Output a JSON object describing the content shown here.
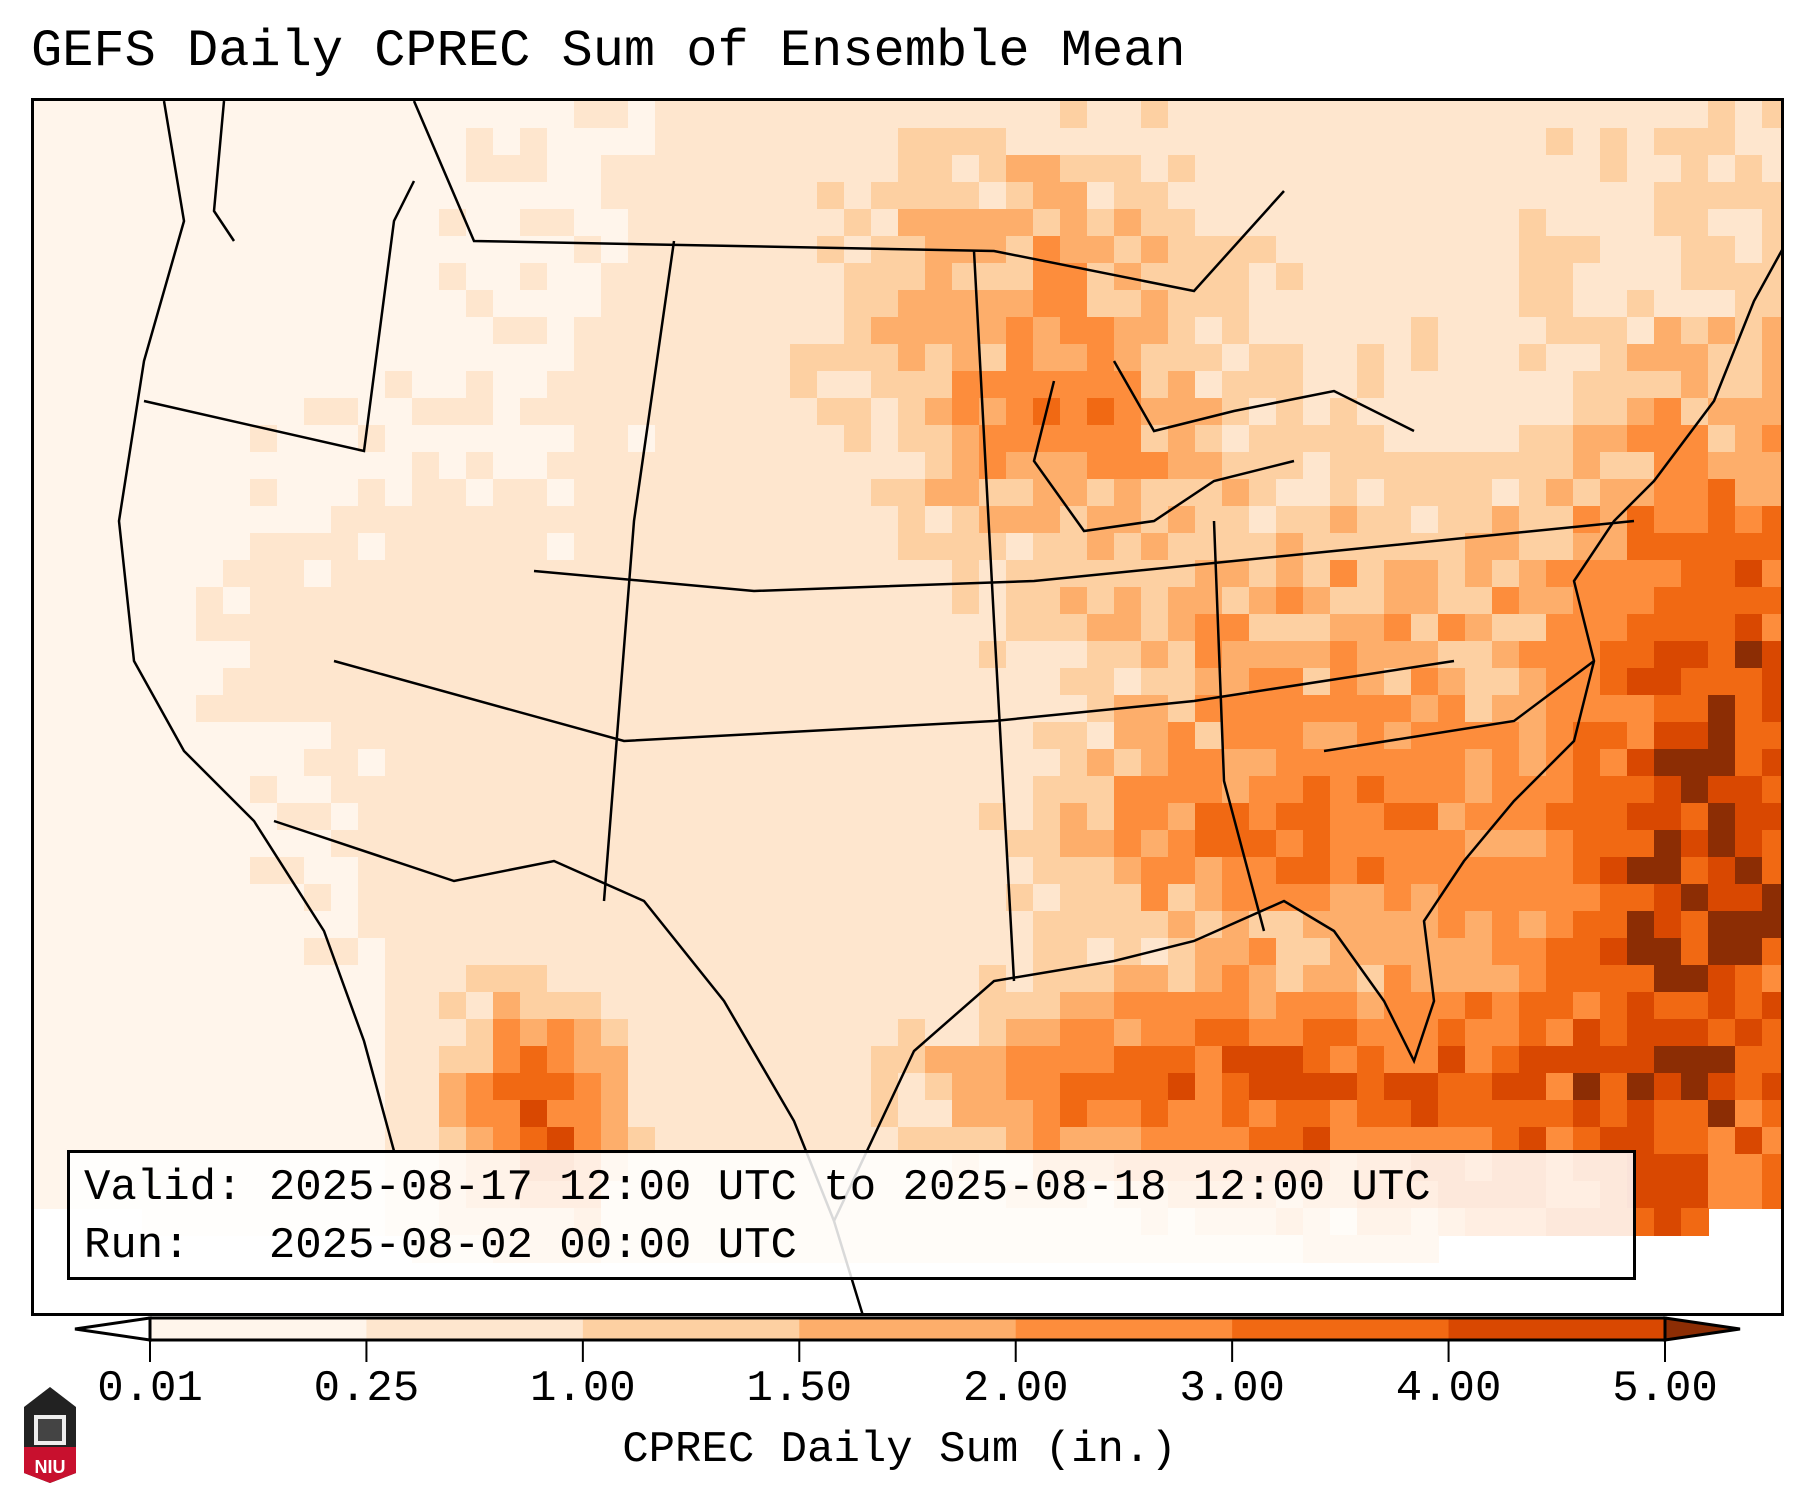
{
  "title": "GEFS Daily CPREC Sum of Ensemble Mean",
  "info": {
    "valid_label": "Valid:",
    "valid_value": "2025-08-17 12:00 UTC to 2025-08-18 12:00 UTC",
    "run_label": "Run:",
    "run_value": "2025-08-02 00:00 UTC"
  },
  "colorbar": {
    "label": "CPREC Daily Sum (in.)",
    "ticks": [
      "0.01",
      "0.25",
      "1.00",
      "1.50",
      "2.00",
      "3.00",
      "4.00",
      "5.00"
    ],
    "colors": [
      "#fff5eb",
      "#fee6ce",
      "#fdd0a2",
      "#fdae6b",
      "#fd8d3c",
      "#f16913",
      "#d94801",
      "#8c2d04"
    ],
    "under_color": "#ffffff",
    "over_color": "#8c2d04"
  },
  "logo": {
    "text": "NIU",
    "color": "#c8102e"
  }
}
